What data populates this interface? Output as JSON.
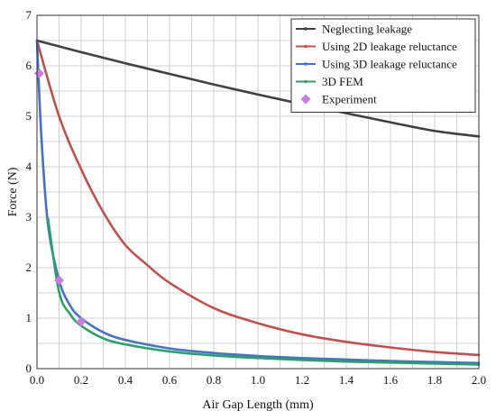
{
  "chart_data": {
    "type": "line",
    "xlabel": "Air Gap Length (mm)",
    "ylabel": "Force (N)",
    "xlim": [
      0,
      2.0
    ],
    "ylim": [
      0,
      7
    ],
    "x_ticks": [
      "0.0",
      "0.2",
      "0.4",
      "0.6",
      "0.8",
      "1.0",
      "1.2",
      "1.4",
      "1.6",
      "1.8",
      "2.0"
    ],
    "y_ticks": [
      "0",
      "1",
      "2",
      "3",
      "4",
      "5",
      "6",
      "7"
    ],
    "grid": true,
    "legend_position": "top-right",
    "series": [
      {
        "name": "Neglecting leakage",
        "color": "#404040",
        "x": [
          0.0,
          0.2,
          0.4,
          0.6,
          0.8,
          1.0,
          1.2,
          1.4,
          1.6,
          1.8,
          2.0
        ],
        "y": [
          6.5,
          6.27,
          6.05,
          5.84,
          5.63,
          5.43,
          5.24,
          5.06,
          4.88,
          4.71,
          4.6
        ]
      },
      {
        "name": "Using 2D leakage reluctance",
        "color": "#c0504d",
        "x": [
          0.0,
          0.1,
          0.2,
          0.3,
          0.4,
          0.5,
          0.6,
          0.8,
          1.0,
          1.2,
          1.4,
          1.6,
          1.8,
          2.0
        ],
        "y": [
          6.5,
          5.0,
          3.95,
          3.1,
          2.45,
          2.05,
          1.7,
          1.2,
          0.9,
          0.68,
          0.53,
          0.42,
          0.33,
          0.27
        ]
      },
      {
        "name": "Using 3D leakage reluctance",
        "color": "#4472c4",
        "x": [
          0.0,
          0.02,
          0.05,
          0.1,
          0.15,
          0.2,
          0.3,
          0.4,
          0.6,
          0.8,
          1.0,
          1.2,
          1.4,
          1.6,
          1.8,
          2.0
        ],
        "y": [
          6.5,
          4.6,
          2.85,
          1.75,
          1.25,
          1.0,
          0.72,
          0.57,
          0.4,
          0.31,
          0.25,
          0.21,
          0.18,
          0.15,
          0.13,
          0.11
        ]
      },
      {
        "name": "3D FEM",
        "color": "#2e9e6b",
        "x": [
          0.05,
          0.1,
          0.15,
          0.2,
          0.3,
          0.4,
          0.6,
          0.8,
          1.0,
          1.2,
          1.4,
          1.6,
          1.8,
          2.0
        ],
        "y": [
          2.97,
          1.52,
          1.08,
          0.85,
          0.6,
          0.48,
          0.34,
          0.26,
          0.21,
          0.17,
          0.14,
          0.12,
          0.1,
          0.08
        ]
      },
      {
        "name": "Experiment",
        "color": "#c77ddb",
        "marker": "diamond",
        "x": [
          0.01,
          0.1,
          0.2
        ],
        "y": [
          5.85,
          1.75,
          0.93
        ]
      }
    ]
  }
}
